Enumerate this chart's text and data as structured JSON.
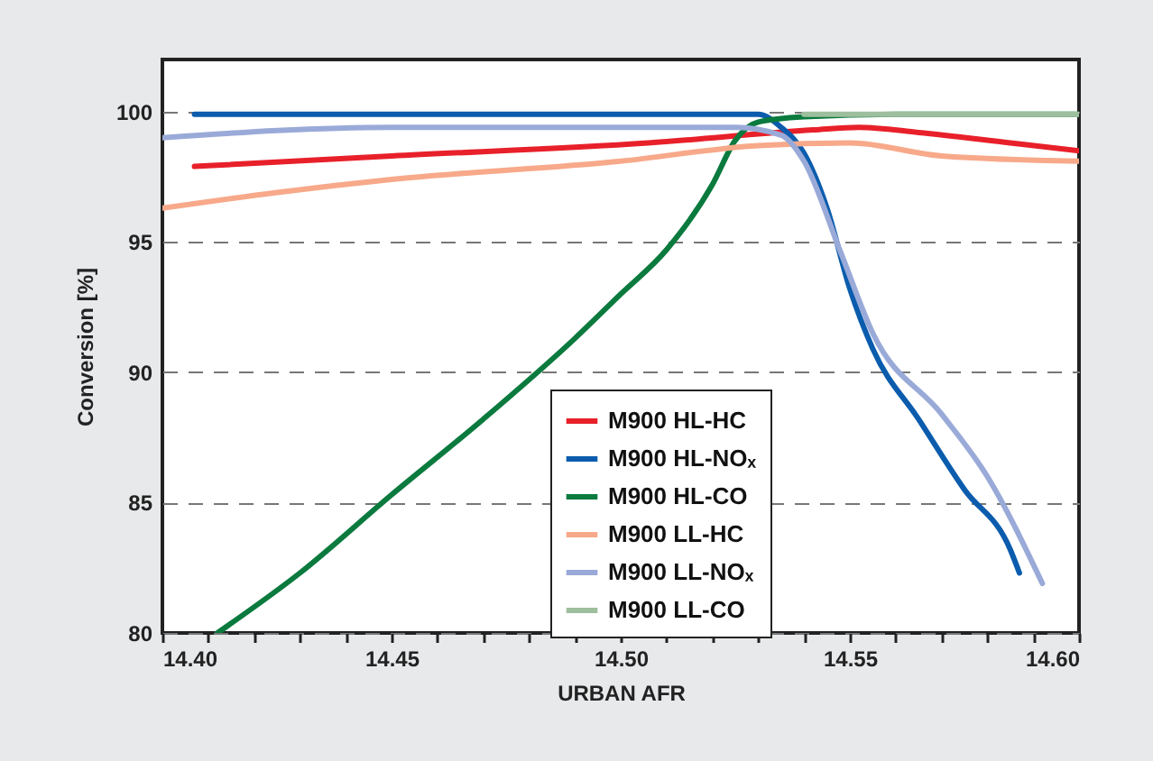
{
  "chart_data": {
    "type": "line",
    "xlabel": "URBAN AFR",
    "ylabel": "Conversion [%]",
    "xlim": [
      14.4,
      14.6
    ],
    "xticks": [
      {
        "value": 14.4,
        "label": "14.40"
      },
      {
        "value": 14.41,
        "label": null
      },
      {
        "value": 14.42,
        "label": null
      },
      {
        "value": 14.43,
        "label": null
      },
      {
        "value": 14.44,
        "label": null
      },
      {
        "value": 14.45,
        "label": "14.45"
      },
      {
        "value": 14.46,
        "label": null
      },
      {
        "value": 14.47,
        "label": null
      },
      {
        "value": 14.48,
        "label": null
      },
      {
        "value": 14.49,
        "label": null
      },
      {
        "value": 14.5,
        "label": "14.50"
      },
      {
        "value": 14.51,
        "label": null
      },
      {
        "value": 14.52,
        "label": null
      },
      {
        "value": 14.53,
        "label": null
      },
      {
        "value": 14.54,
        "label": null
      },
      {
        "value": 14.55,
        "label": "14.55"
      },
      {
        "value": 14.56,
        "label": null
      },
      {
        "value": 14.57,
        "label": null
      },
      {
        "value": 14.58,
        "label": null
      },
      {
        "value": 14.59,
        "label": null
      },
      {
        "value": 14.6,
        "label": "14.60"
      }
    ],
    "ylim": [
      80,
      102
    ],
    "yticks": [
      80,
      85,
      90,
      95,
      100
    ],
    "grid": "y",
    "line_style": "solid",
    "legend": "bottom",
    "series": [
      {
        "name": "M900 HL-HC",
        "color": "#e8202a",
        "x": [
          14.407,
          14.45,
          14.506,
          14.542,
          14.552,
          14.565,
          14.585,
          14.6
        ],
        "values": [
          97.9,
          98.3,
          98.8,
          99.3,
          99.4,
          99.2,
          98.8,
          98.5
        ]
      },
      {
        "name": "M900 HL-NOₓ",
        "color": "#0b5cad",
        "x": [
          14.407,
          14.5,
          14.52,
          14.53,
          14.535,
          14.54,
          14.545,
          14.55,
          14.555,
          14.565,
          14.575,
          14.585,
          14.587
        ],
        "values": [
          99.9,
          99.9,
          99.9,
          99.9,
          99.4,
          98.4,
          96.3,
          93.2,
          90.9,
          88.2,
          85.5,
          83.2,
          82.3
        ]
      },
      {
        "name": "M900 HL-CO",
        "color": "#0b7a3e",
        "x": [
          14.412,
          14.43,
          14.45,
          14.47,
          14.49,
          14.5,
          14.51,
          14.52,
          14.525,
          14.53,
          14.54,
          14.56,
          14.6
        ],
        "values": [
          80,
          82.3,
          85.3,
          88.2,
          91.3,
          93,
          94.7,
          97.2,
          98.9,
          99.6,
          99.8,
          99.9,
          99.9
        ]
      },
      {
        "name": "M900 LL-HC",
        "color": "#f7a98a",
        "x": [
          14.4,
          14.425,
          14.45,
          14.5,
          14.53,
          14.55,
          14.57,
          14.6
        ],
        "values": [
          96.3,
          96.9,
          97.4,
          98.1,
          98.7,
          98.8,
          98.3,
          98.1
        ]
      },
      {
        "name": "M900 LL-NOₓ",
        "color": "#9aaad8",
        "x": [
          14.4,
          14.45,
          14.5,
          14.525,
          14.535,
          14.54,
          14.548,
          14.555,
          14.57,
          14.58,
          14.592
        ],
        "values": [
          99,
          99.4,
          99.4,
          99.4,
          99.1,
          98.1,
          94.6,
          91.5,
          88.4,
          86,
          81.9
        ]
      },
      {
        "name": "M900 LL-CO",
        "color": "#9ebf9e",
        "x": [
          14.54,
          14.57,
          14.6
        ],
        "values": [
          99.9,
          99.9,
          99.9
        ]
      }
    ]
  }
}
